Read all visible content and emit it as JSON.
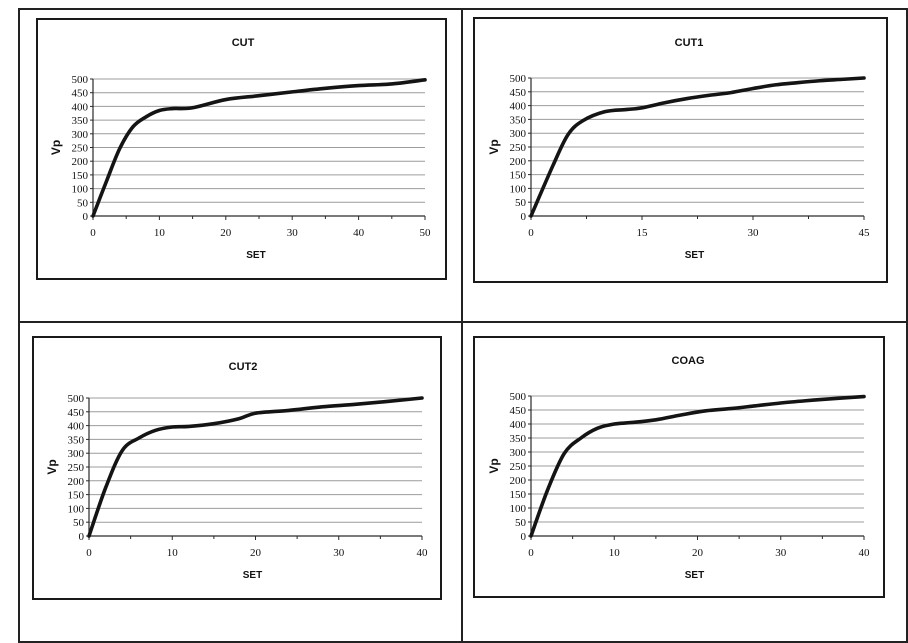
{
  "colors": {
    "line": "#141414",
    "grid": "#9c9c9c",
    "axis": "#2a2a2a"
  },
  "chart_data": [
    {
      "type": "line",
      "title": "CUT",
      "xlabel": "SET",
      "ylabel": "Vp",
      "xlim": [
        0,
        50
      ],
      "ylim": [
        0,
        500
      ],
      "xticks": [
        0,
        10,
        20,
        30,
        40,
        50
      ],
      "yticks": [
        0,
        50,
        100,
        150,
        200,
        250,
        300,
        350,
        400,
        450,
        500
      ],
      "grid": "horizontal",
      "legend": "none",
      "x": [
        0,
        2,
        4,
        6,
        8,
        10,
        12,
        15,
        20,
        25,
        30,
        35,
        40,
        45,
        50
      ],
      "series": [
        {
          "values": [
            0,
            125,
            245,
            325,
            362,
            385,
            392,
            395,
            425,
            439,
            453,
            466,
            476,
            482,
            497
          ]
        }
      ]
    },
    {
      "type": "line",
      "title": "CUT1",
      "xlabel": "SET",
      "ylabel": "Vp",
      "xlim": [
        0,
        45
      ],
      "ylim": [
        0,
        500
      ],
      "xticks": [
        0,
        15,
        30,
        45
      ],
      "yticks": [
        0,
        50,
        100,
        150,
        200,
        250,
        300,
        350,
        400,
        450,
        500
      ],
      "grid": "horizontal",
      "legend": "none",
      "x": [
        0,
        3,
        5,
        7,
        10,
        13,
        15,
        18,
        21,
        24,
        27,
        30,
        33,
        36,
        39,
        42,
        45
      ],
      "series": [
        {
          "values": [
            0,
            185,
            295,
            345,
            378,
            386,
            392,
            410,
            425,
            437,
            447,
            462,
            475,
            483,
            490,
            495,
            500
          ]
        }
      ]
    },
    {
      "type": "line",
      "title": "CUT2",
      "xlabel": "SET",
      "ylabel": "Vp",
      "xlim": [
        0,
        40
      ],
      "ylim": [
        0,
        500
      ],
      "xticks": [
        0,
        10,
        20,
        30,
        40
      ],
      "yticks": [
        0,
        50,
        100,
        150,
        200,
        250,
        300,
        350,
        400,
        450,
        500
      ],
      "grid": "horizontal",
      "legend": "none",
      "x": [
        0,
        2,
        4,
        6,
        8,
        10,
        12,
        15,
        18,
        20,
        24,
        28,
        32,
        36,
        40
      ],
      "series": [
        {
          "values": [
            0,
            175,
            310,
            355,
            383,
            395,
            397,
            407,
            425,
            445,
            455,
            468,
            477,
            488,
            500
          ]
        }
      ]
    },
    {
      "type": "line",
      "title": "COAG",
      "xlabel": "SET",
      "ylabel": "Vp",
      "xlim": [
        0,
        40
      ],
      "ylim": [
        0,
        500
      ],
      "xticks": [
        0,
        10,
        20,
        30,
        40
      ],
      "yticks": [
        0,
        50,
        100,
        150,
        200,
        250,
        300,
        350,
        400,
        450,
        500
      ],
      "grid": "horizontal",
      "legend": "none",
      "x": [
        0,
        2,
        4,
        6,
        8,
        10,
        12,
        15,
        18,
        21,
        24,
        27,
        30,
        33,
        36,
        40
      ],
      "series": [
        {
          "values": [
            0,
            165,
            295,
            350,
            385,
            400,
            405,
            415,
            432,
            447,
            455,
            465,
            475,
            483,
            490,
            498
          ]
        }
      ]
    }
  ]
}
